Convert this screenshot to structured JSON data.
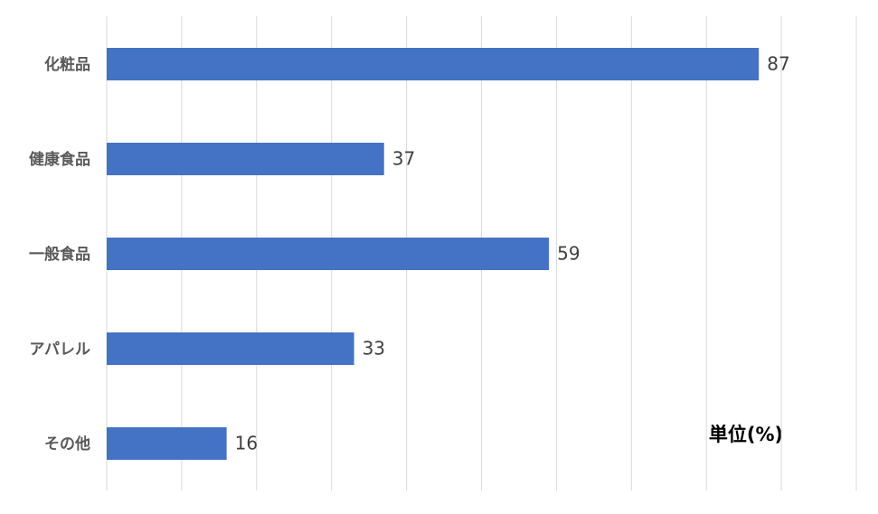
{
  "chart_data": {
    "type": "barh",
    "categories": [
      "化粧品",
      "健康食品",
      "一般食品",
      "アパレル",
      "その他"
    ],
    "values": [
      87,
      37,
      59,
      33,
      16
    ],
    "color": "#4472c4",
    "xlim": [
      0,
      100
    ],
    "xticks": [
      0,
      10,
      20,
      30,
      40,
      50,
      60,
      70,
      80,
      90,
      100
    ],
    "grid": true,
    "annotation": "単位(%)"
  }
}
